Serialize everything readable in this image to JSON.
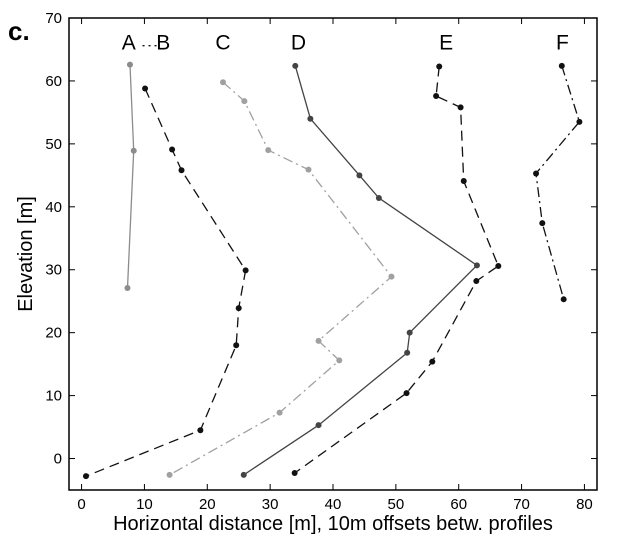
{
  "chart_data": {
    "type": "line",
    "panel_label": "c.",
    "title": "",
    "xlabel": "Horizontal distance [m], 10m offsets betw. profiles",
    "ylabel": "Elevation [m]",
    "xlim": [
      -2,
      82
    ],
    "ylim": [
      -5,
      70
    ],
    "xticks": [
      0,
      10,
      20,
      30,
      40,
      50,
      60,
      70,
      80
    ],
    "yticks": [
      0,
      10,
      20,
      30,
      40,
      50,
      60,
      70
    ],
    "grid": false,
    "legend": "none",
    "series": [
      {
        "name": "A",
        "color": "#8c8c8c",
        "dash": "solid",
        "label_pos": [
          7.5,
          65
        ],
        "x": [
          7.7,
          8.3,
          7.3
        ],
        "y": [
          62.6,
          48.9,
          27.1
        ]
      },
      {
        "name": "B",
        "color": "#111111",
        "dash": "dash",
        "label_pos": [
          13,
          65
        ],
        "x": [
          10.1,
          14.4,
          15.9,
          26.1,
          25.0,
          24.6,
          18.9,
          0.7
        ],
        "y": [
          58.8,
          49.1,
          45.8,
          29.9,
          23.9,
          18.0,
          4.5,
          -2.8
        ]
      },
      {
        "name": "C",
        "color": "#a0a0a0",
        "dash": "dashdot",
        "label_pos": [
          22.5,
          65
        ],
        "x": [
          22.5,
          25.9,
          29.7,
          36.1,
          49.3,
          37.7,
          41.0,
          31.5,
          14.0
        ],
        "y": [
          59.8,
          56.8,
          49.0,
          45.9,
          28.9,
          18.7,
          15.6,
          7.3,
          -2.6
        ]
      },
      {
        "name": "D",
        "color": "#444444",
        "dash": "solid",
        "label_pos": [
          34.5,
          65
        ],
        "x": [
          34.0,
          36.4,
          44.2,
          47.3,
          62.9,
          52.2,
          51.8,
          37.7,
          25.8
        ],
        "y": [
          62.4,
          54.0,
          45.0,
          41.4,
          30.7,
          20.0,
          16.8,
          5.3,
          -2.6
        ]
      },
      {
        "name": "E",
        "color": "#111111",
        "dash": "dash",
        "label_pos": [
          58,
          65
        ],
        "x": [
          56.9,
          56.4,
          60.3,
          60.8,
          66.3,
          62.8,
          55.8,
          51.7,
          33.9
        ],
        "y": [
          62.3,
          57.6,
          55.8,
          44.1,
          30.6,
          28.2,
          15.4,
          10.4,
          -2.3
        ]
      },
      {
        "name": "F",
        "color": "#111111",
        "dash": "dashdot",
        "label_pos": [
          76.5,
          65
        ],
        "x": [
          76.4,
          79.2,
          72.3,
          73.3,
          76.7
        ],
        "y": [
          62.4,
          53.5,
          45.3,
          37.4,
          25.3
        ]
      }
    ]
  }
}
